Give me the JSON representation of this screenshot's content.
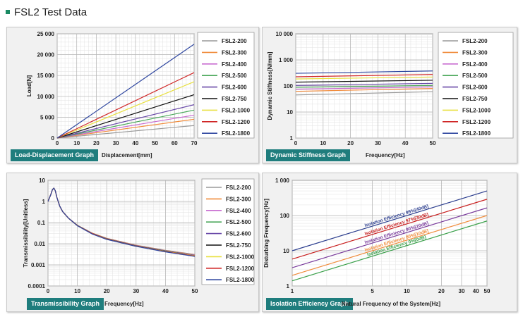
{
  "page": {
    "title": "FSL2 Test Data",
    "accent": "#1a8a63",
    "badge_color": "#1f7d7d"
  },
  "series_names": [
    "FSL2-200",
    "FSL2-300",
    "FSL2-400",
    "FSL2-500",
    "FSL2-600",
    "FSL2-750",
    "FSL2-1000",
    "FSL2-1200",
    "FSL2-1800"
  ],
  "series_colors": [
    "#9a9a9a",
    "#f08c3c",
    "#c86bd0",
    "#4aa85a",
    "#6a4aa8",
    "#111111",
    "#e8e040",
    "#d02828",
    "#3048a0"
  ],
  "chart_data": [
    {
      "id": "load",
      "type": "line",
      "badge": "Load-Displacement Graph",
      "xlabel": "Displacement[mm]",
      "ylabel": "Load[N]",
      "xlim": [
        0,
        70
      ],
      "ylim": [
        0,
        25000
      ],
      "xticks": [
        0,
        10,
        20,
        30,
        40,
        50,
        60,
        70
      ],
      "xtick_labels": [
        "0",
        "10",
        "20",
        "30",
        "40",
        "50",
        "60",
        "70"
      ],
      "yticks": [
        0,
        5000,
        10000,
        15000,
        20000,
        25000
      ],
      "ytick_labels": [
        "0",
        "5 000",
        "10 000",
        "15 000",
        "20 000",
        "25 000"
      ],
      "grid": true,
      "legend": "right",
      "x": [
        0,
        70
      ],
      "series": [
        {
          "name": "FSL2-200",
          "values": [
            0,
            3000
          ]
        },
        {
          "name": "FSL2-300",
          "values": [
            0,
            4500
          ]
        },
        {
          "name": "FSL2-400",
          "values": [
            0,
            5500
          ]
        },
        {
          "name": "FSL2-500",
          "values": [
            0,
            6700
          ]
        },
        {
          "name": "FSL2-600",
          "values": [
            0,
            8000
          ]
        },
        {
          "name": "FSL2-750",
          "values": [
            0,
            10400
          ]
        },
        {
          "name": "FSL2-1000",
          "values": [
            0,
            13500
          ]
        },
        {
          "name": "FSL2-1200",
          "values": [
            0,
            15700
          ]
        },
        {
          "name": "FSL2-1800",
          "values": [
            0,
            22500
          ]
        }
      ]
    },
    {
      "id": "stiff",
      "type": "line",
      "badge": "Dynamic Stiffness Graph",
      "xlabel": "Frequency[Hz]",
      "ylabel": "Dynamic Stiffness[N/mm]",
      "xscale": "linear",
      "yscale": "log",
      "xlim": [
        0,
        50
      ],
      "ylim": [
        1,
        10000
      ],
      "xticks": [
        0,
        10,
        20,
        30,
        40,
        50
      ],
      "xtick_labels": [
        "0",
        "10",
        "20",
        "30",
        "40",
        "50"
      ],
      "yticks": [
        1,
        10,
        100,
        1000,
        10000
      ],
      "ytick_labels": [
        "1",
        "10",
        "100",
        "1 000",
        "10 000"
      ],
      "grid": true,
      "legend": "right",
      "x": [
        0,
        50
      ],
      "series": [
        {
          "name": "FSL2-200",
          "values": [
            45,
            60
          ]
        },
        {
          "name": "FSL2-300",
          "values": [
            62,
            80
          ]
        },
        {
          "name": "FSL2-400",
          "values": [
            75,
            92
          ]
        },
        {
          "name": "FSL2-500",
          "values": [
            88,
            105
          ]
        },
        {
          "name": "FSL2-600",
          "values": [
            105,
            125
          ]
        },
        {
          "name": "FSL2-750",
          "values": [
            140,
            165
          ]
        },
        {
          "name": "FSL2-1000",
          "values": [
            185,
            220
          ]
        },
        {
          "name": "FSL2-1200",
          "values": [
            225,
            275
          ]
        },
        {
          "name": "FSL2-1800",
          "values": [
            305,
            375
          ]
        }
      ]
    },
    {
      "id": "trans",
      "type": "line",
      "badge": "Transmissibility Graph",
      "xlabel": "Frequency[Hz]",
      "ylabel": "Transmissibility[Unitless]",
      "xscale": "linear",
      "yscale": "log",
      "xlim": [
        0,
        50
      ],
      "ylim": [
        0.0001,
        10
      ],
      "xticks": [
        0,
        10,
        20,
        30,
        40,
        50
      ],
      "xtick_labels": [
        "0",
        "10",
        "20",
        "30",
        "40",
        "50"
      ],
      "yticks": [
        0.0001,
        0.001,
        0.01,
        0.1,
        1,
        10
      ],
      "ytick_labels": [
        "0.0001",
        "0.001",
        "0.01",
        "0.1",
        "1",
        "10"
      ],
      "grid": true,
      "legend": "right",
      "x": [
        0,
        1,
        1.5,
        2,
        2.5,
        3,
        4,
        5,
        7,
        10,
        15,
        20,
        30,
        40,
        50
      ],
      "series": [
        {
          "name": "FSL2-200",
          "values": [
            1,
            2.2,
            3.6,
            4.3,
            3.2,
            1.6,
            0.6,
            0.33,
            0.16,
            0.075,
            0.032,
            0.018,
            0.0085,
            0.0049,
            0.0031
          ]
        },
        {
          "name": "FSL2-300",
          "values": [
            1,
            2.2,
            3.6,
            4.3,
            3.2,
            1.6,
            0.6,
            0.33,
            0.16,
            0.075,
            0.032,
            0.018,
            0.0084,
            0.0048,
            0.003
          ]
        },
        {
          "name": "FSL2-400",
          "values": [
            1,
            2.2,
            3.6,
            4.3,
            3.2,
            1.6,
            0.6,
            0.33,
            0.16,
            0.074,
            0.031,
            0.0175,
            0.0082,
            0.0047,
            0.0029
          ]
        },
        {
          "name": "FSL2-500",
          "values": [
            1,
            2.2,
            3.6,
            4.3,
            3.2,
            1.6,
            0.6,
            0.33,
            0.16,
            0.074,
            0.031,
            0.0172,
            0.008,
            0.0046,
            0.0028
          ]
        },
        {
          "name": "FSL2-600",
          "values": [
            1,
            2.2,
            3.6,
            4.3,
            3.2,
            1.6,
            0.6,
            0.33,
            0.16,
            0.073,
            0.031,
            0.017,
            0.0079,
            0.0045,
            0.0028
          ]
        },
        {
          "name": "FSL2-750",
          "values": [
            1,
            2.2,
            3.6,
            4.3,
            3.2,
            1.6,
            0.6,
            0.33,
            0.16,
            0.073,
            0.03,
            0.0168,
            0.0078,
            0.0044,
            0.0027
          ]
        },
        {
          "name": "FSL2-1000",
          "values": [
            1,
            2.2,
            3.6,
            4.3,
            3.2,
            1.6,
            0.6,
            0.33,
            0.16,
            0.072,
            0.03,
            0.0165,
            0.0077,
            0.0043,
            0.0027
          ]
        },
        {
          "name": "FSL2-1200",
          "values": [
            1,
            2.2,
            3.6,
            4.3,
            3.2,
            1.6,
            0.6,
            0.33,
            0.16,
            0.072,
            0.03,
            0.0163,
            0.0076,
            0.0042,
            0.0026
          ]
        },
        {
          "name": "FSL2-1800",
          "values": [
            1,
            2.2,
            3.6,
            4.3,
            3.2,
            1.6,
            0.6,
            0.33,
            0.16,
            0.071,
            0.029,
            0.016,
            0.0075,
            0.0041,
            0.0025
          ]
        }
      ]
    },
    {
      "id": "iso",
      "type": "line",
      "badge": "Isolation Efficiency Graph",
      "xlabel": "Natural Frequency of the System[Hz]",
      "ylabel": "Disturbing Frequency[Hz]",
      "xscale": "log",
      "yscale": "log",
      "xlim": [
        1,
        50
      ],
      "ylim": [
        1,
        1000
      ],
      "xticks": [
        1,
        5,
        10,
        20,
        30,
        40,
        50
      ],
      "xtick_labels": [
        "1",
        "5",
        "10",
        "20",
        "30",
        "40",
        "50"
      ],
      "yticks": [
        1,
        10,
        100,
        1000
      ],
      "ytick_labels": [
        "1",
        "10",
        "100",
        "1 000"
      ],
      "grid": true,
      "x": [
        1,
        50
      ],
      "series": [
        {
          "name": "Isolation Efficiency 99%[40dB]",
          "color": "#2d3f8f",
          "values": [
            10,
            500
          ]
        },
        {
          "name": "Isolation Efficiency 97%[30dB]",
          "color": "#c82020",
          "values": [
            5.8,
            290
          ]
        },
        {
          "name": "Isolation Efficiency 90%[20dB]",
          "color": "#7a3c9c",
          "values": [
            3.3,
            165
          ]
        },
        {
          "name": "Isolation Efficiency 80%[10dB]",
          "color": "#f08c3c",
          "values": [
            2.0,
            100
          ]
        },
        {
          "name": "Isolation Efficiency 0%[0dB]",
          "color": "#3aa04a",
          "values": [
            1.4,
            70
          ]
        }
      ]
    }
  ]
}
